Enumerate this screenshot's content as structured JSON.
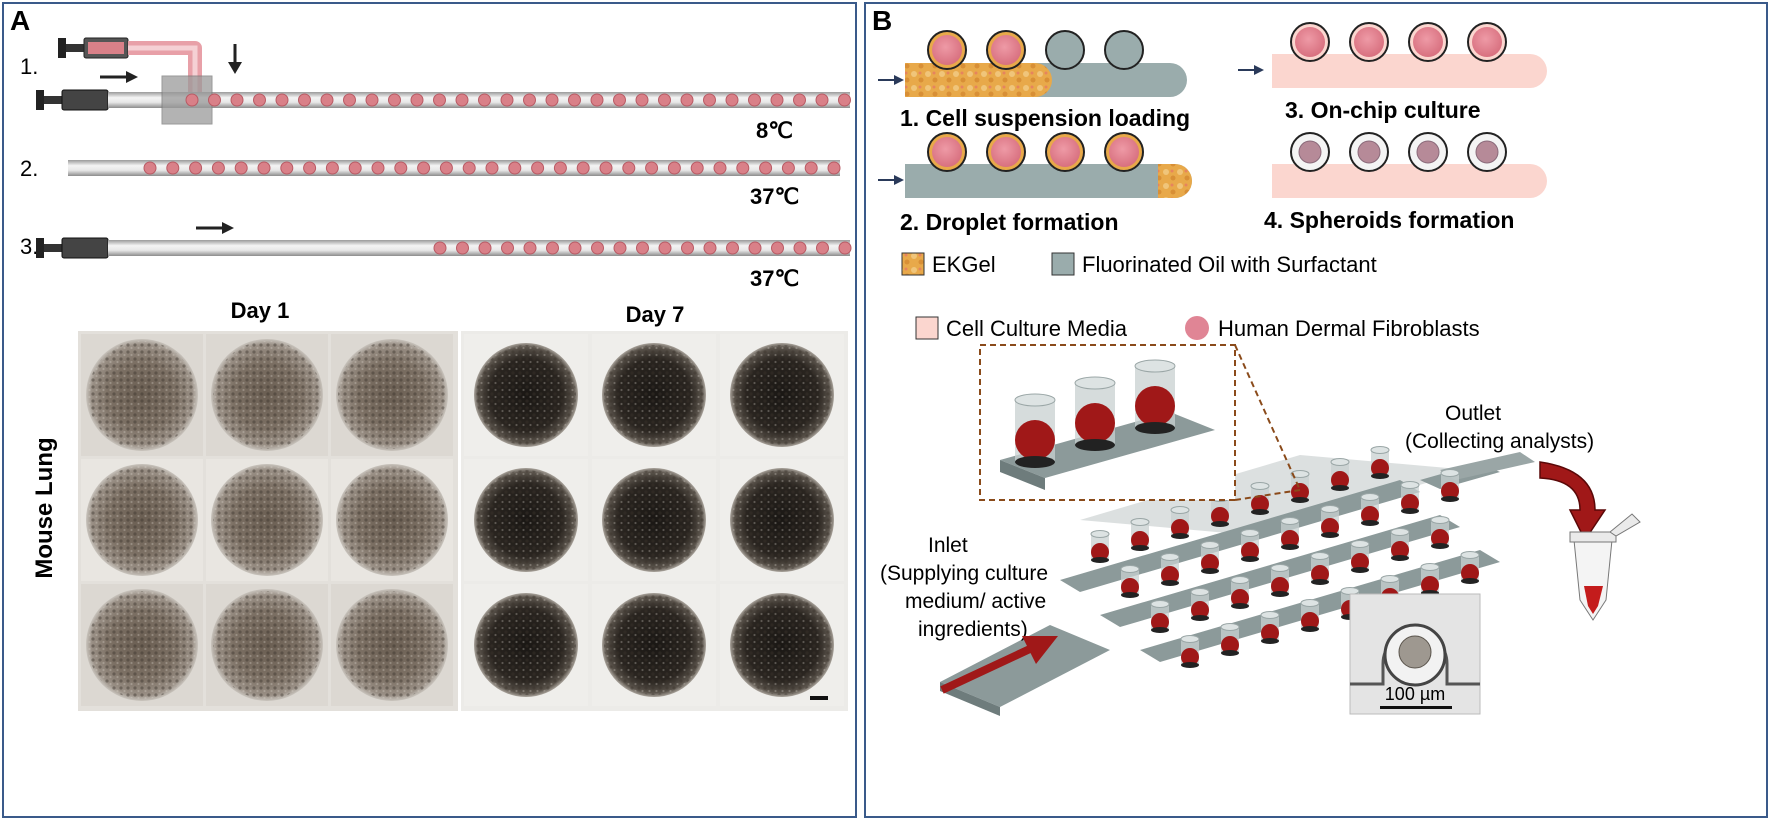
{
  "panel_a": {
    "letter": "A",
    "steps": [
      "1.",
      "2.",
      "3."
    ],
    "temps": [
      "8℃",
      "37℃",
      "37℃"
    ],
    "day1": "Day 1",
    "day7": "Day 7",
    "row_label": "Mouse Lung"
  },
  "panel_b": {
    "letter": "B",
    "step1": "1. Cell suspension loading",
    "step2": "2. Droplet formation",
    "step3": "3. On-chip culture",
    "step4": "4. Spheroids formation",
    "legend": {
      "ekgel": "EKGel",
      "oil": "Fluorinated Oil with Surfactant",
      "media": "Cell Culture Media",
      "cells": "Human Dermal Fibroblasts"
    },
    "outlet_1": "Outlet",
    "outlet_2": "(Collecting analysts)",
    "inlet_1": "Inlet",
    "inlet_2": "(Supplying culture",
    "inlet_3": "medium/ active",
    "inlet_4": "ingredients)",
    "scale": "100 µm"
  },
  "colors": {
    "border": "#3a5a8a",
    "droplet": "#d98088",
    "ekgel": "#e3a640",
    "oil": "#9aacac",
    "media": "#fbd6cf",
    "cell": "#e08595",
    "red": "#a01818"
  }
}
